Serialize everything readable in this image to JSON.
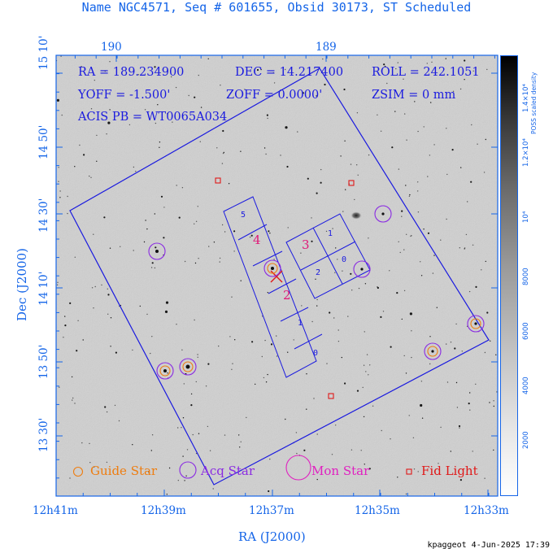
{
  "title": "Name NGC4571, Seq # 601655, Obsid 30173, ST Scheduled",
  "info": {
    "ra": "RA = 189.234900",
    "dec": "DEC = 14.217400",
    "roll": "ROLL = 242.1051",
    "yoff": "YOFF =  -1.500'",
    "zoff": "ZOFF =  0.0000'",
    "zsim": "ZSIM = 0 mm",
    "acis": "ACIS PB = WT0065A034"
  },
  "top_axis": [
    "190",
    "189"
  ],
  "bottom_axis": [
    "12h41m",
    "12h39m",
    "12h37m",
    "12h35m",
    "12h33m"
  ],
  "left_axis": [
    "15 10'",
    "14 50'",
    "14 30'",
    "14 10'",
    "13 50'",
    "13 30'"
  ],
  "xlabel": "RA (J2000)",
  "ylabel": "Dec (J2000)",
  "chips": [
    "0",
    "1",
    "2",
    "3",
    "4",
    "5",
    "1",
    "0"
  ],
  "chip_big_labels": [
    "4",
    "3",
    "2"
  ],
  "legend": {
    "guide": "Guide Star",
    "acq": "Acq Star",
    "mon": "Mon Star",
    "fid": "Fid Light"
  },
  "colorbar": {
    "title": "POSS scaled density",
    "ticks": [
      "2000",
      "4000",
      "6000",
      "8000",
      "10⁴",
      "1.2×10⁴",
      "1.4×10⁴"
    ]
  },
  "footer": "kpaggeot  4-Jun-2025 17:39",
  "colors": {
    "axis": "#1565e8",
    "field": "#1a1adf",
    "guide": "#ee7d10",
    "acq": "#8a2be2",
    "mon": "#e020c0",
    "fid": "#e01818"
  }
}
